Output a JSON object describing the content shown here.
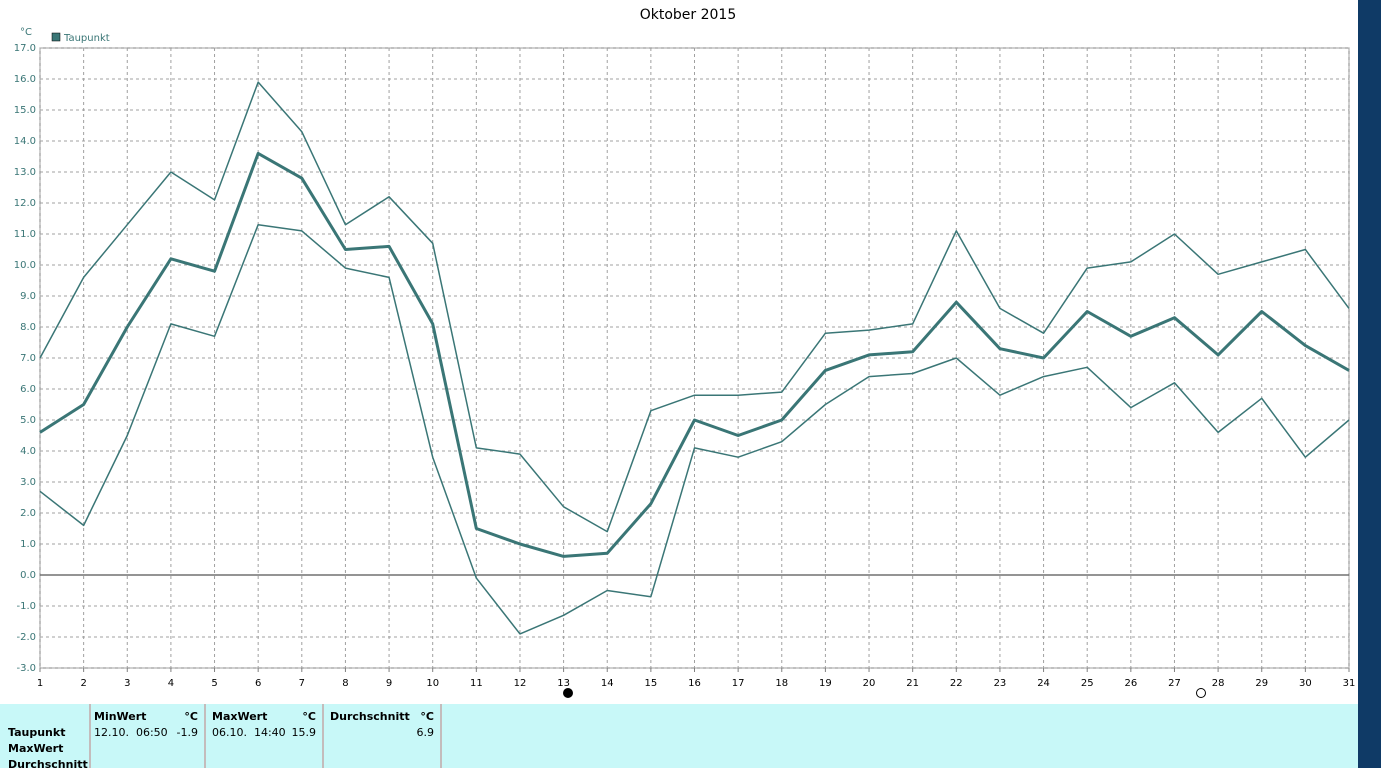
{
  "chart_data": {
    "type": "line",
    "title": "Oktober 2015",
    "y_unit": "°C",
    "x": [
      1,
      2,
      3,
      4,
      5,
      6,
      7,
      8,
      9,
      10,
      11,
      12,
      13,
      14,
      15,
      16,
      17,
      18,
      19,
      20,
      21,
      22,
      23,
      24,
      25,
      26,
      27,
      28,
      29,
      30,
      31
    ],
    "xlim": [
      1,
      31
    ],
    "xticks": [
      1,
      2,
      3,
      4,
      5,
      6,
      7,
      8,
      9,
      10,
      11,
      12,
      13,
      14,
      15,
      16,
      17,
      18,
      19,
      20,
      21,
      22,
      23,
      24,
      25,
      26,
      27,
      28,
      29,
      30,
      31
    ],
    "ylim": [
      -3,
      17
    ],
    "yticks": [
      {
        "value": -3,
        "label": "-3.0"
      },
      {
        "value": -2,
        "label": "-2.0"
      },
      {
        "value": -1,
        "label": "-1.0"
      },
      {
        "value": 0,
        "label": "0.0"
      },
      {
        "value": 1,
        "label": "1.0"
      },
      {
        "value": 2,
        "label": "2.0"
      },
      {
        "value": 3,
        "label": "3.0"
      },
      {
        "value": 4,
        "label": "4.0"
      },
      {
        "value": 5,
        "label": "5.0"
      },
      {
        "value": 6,
        "label": "6.0"
      },
      {
        "value": 7,
        "label": "7.0"
      },
      {
        "value": 8,
        "label": "8.0"
      },
      {
        "value": 9,
        "label": "9.0"
      },
      {
        "value": 10,
        "label": "10.0"
      },
      {
        "value": 11,
        "label": "11.0"
      },
      {
        "value": 12,
        "label": "12.0"
      },
      {
        "value": 13,
        "label": "13.0"
      },
      {
        "value": 14,
        "label": "14.0"
      },
      {
        "value": 15,
        "label": "15.0"
      },
      {
        "value": 16,
        "label": "16.0"
      },
      {
        "value": 17,
        "label": "17.0"
      }
    ],
    "grid": true,
    "series": [
      {
        "name": "Taupunkt",
        "color": "#3a7676",
        "width": 3,
        "values": [
          4.6,
          5.5,
          8.0,
          10.2,
          9.8,
          13.6,
          12.8,
          10.5,
          10.6,
          8.1,
          1.5,
          1.0,
          0.6,
          0.7,
          2.3,
          5.0,
          4.5,
          5.0,
          6.6,
          7.1,
          7.2,
          8.8,
          7.3,
          7.0,
          8.5,
          7.7,
          8.3,
          7.1,
          8.5,
          7.4,
          6.6
        ]
      },
      {
        "color": "#3a7676",
        "width": 1.5,
        "values": [
          7.0,
          9.6,
          11.3,
          13.0,
          12.1,
          15.9,
          14.3,
          11.3,
          12.2,
          10.7,
          4.1,
          3.9,
          2.2,
          1.4,
          5.3,
          5.8,
          5.8,
          5.9,
          7.8,
          7.9,
          8.1,
          11.1,
          8.6,
          7.8,
          9.9,
          10.1,
          11.0,
          9.7,
          10.1,
          10.5,
          8.6
        ]
      },
      {
        "color": "#3a7676",
        "width": 1.5,
        "values": [
          2.7,
          1.6,
          4.5,
          8.1,
          7.7,
          11.3,
          11.1,
          9.9,
          9.6,
          3.8,
          -0.1,
          -1.9,
          -1.3,
          -0.5,
          -0.7,
          4.1,
          3.8,
          4.3,
          5.5,
          6.4,
          6.5,
          7.0,
          5.8,
          6.4,
          6.7,
          5.4,
          6.2,
          4.6,
          5.7,
          3.8,
          5.0
        ]
      }
    ]
  },
  "table": {
    "header": [
      "MinWert",
      "°C",
      "MaxWert",
      "°C",
      "Durchschnitt",
      "°C"
    ],
    "row_labels": [
      "Taupunkt",
      "MaxWert",
      "Durchschnitt"
    ],
    "rows": [
      {
        "min_time": "12.10.  06:50",
        "min": -1.9,
        "max_time": "06.10.  14:40",
        "max": 15.9,
        "avg": 6.9
      }
    ]
  }
}
